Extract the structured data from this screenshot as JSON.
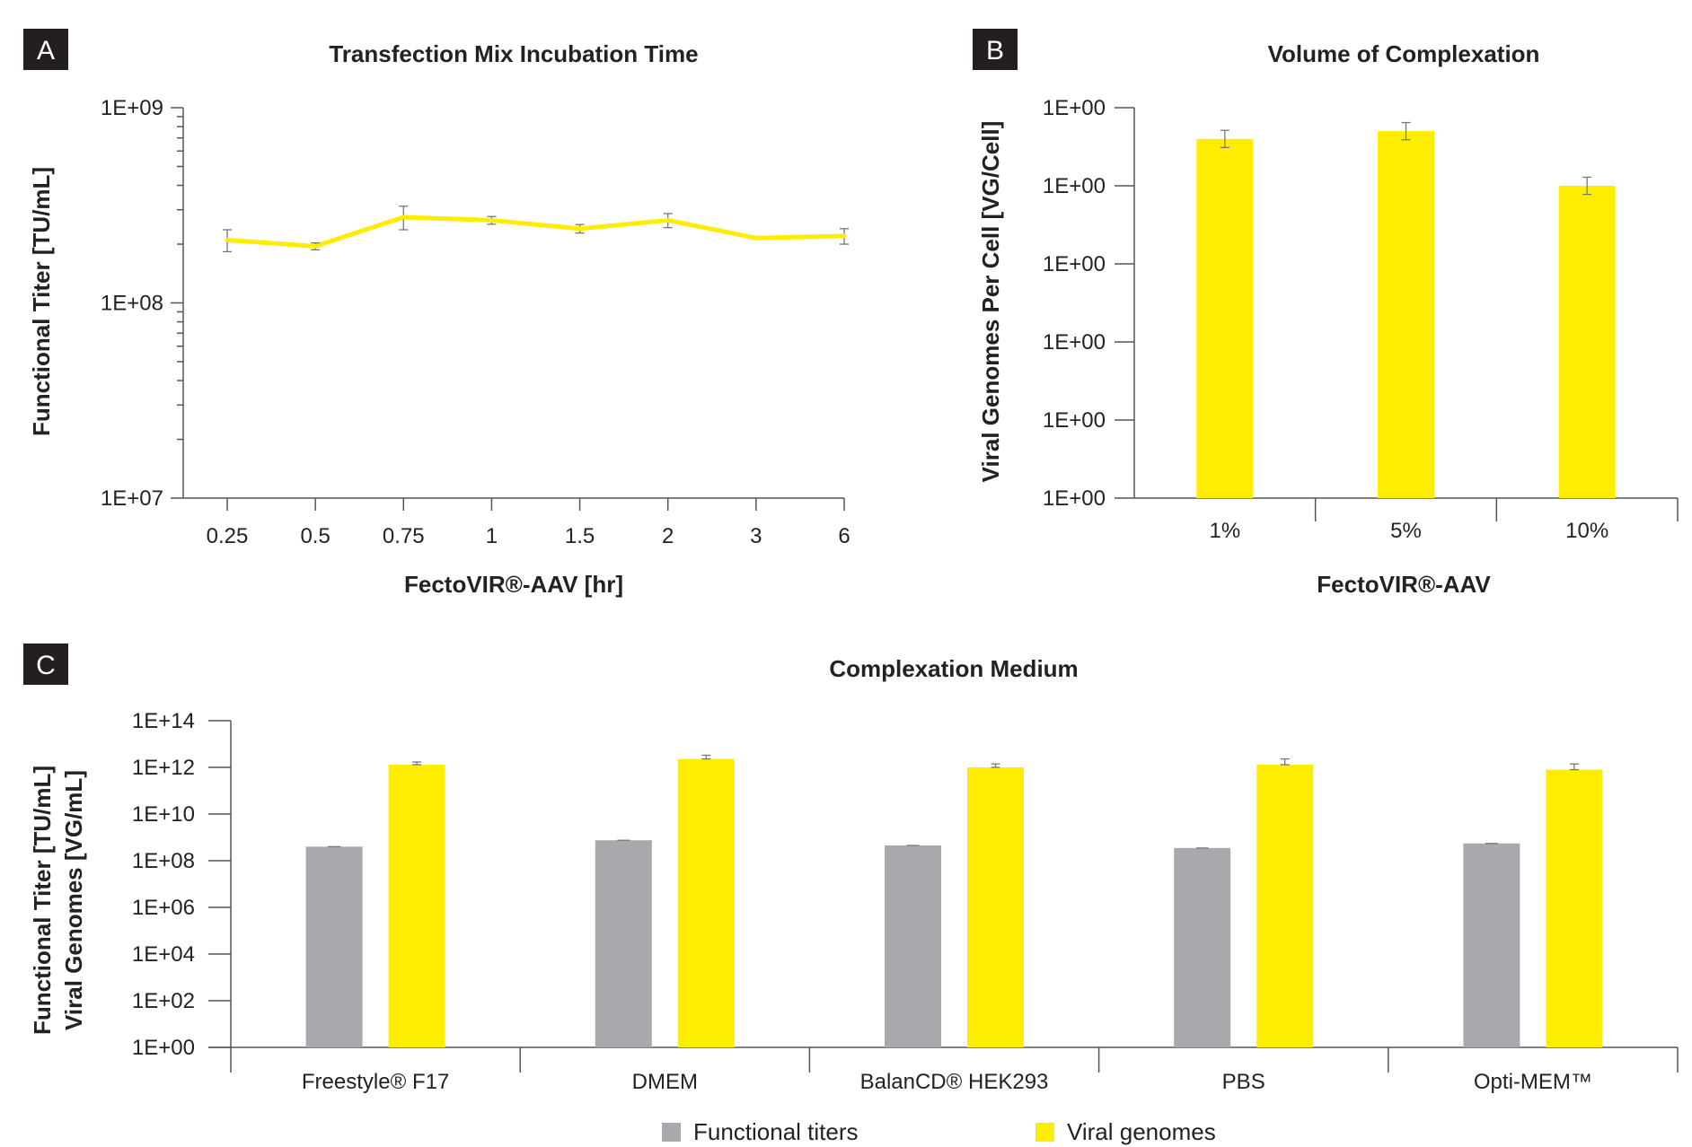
{
  "colors": {
    "yellow": "#FFED00",
    "gray": "#A7A9AC",
    "badge": "#231F20"
  },
  "chart_data": [
    {
      "panel": "A",
      "type": "line",
      "title": "Transfection Mix Incubation Time",
      "xlabel": "FectoVIR®-AAV [hr]",
      "ylabel": "Functional Titer [TU/mL]",
      "yscale": "log",
      "ylim": [
        10000000,
        1000000000
      ],
      "ytick_labels": [
        "1E+07",
        "1E+08",
        "1E+09"
      ],
      "categories": [
        "0.25",
        "0.5",
        "0.75",
        "1",
        "1.5",
        "2",
        "3",
        "6"
      ],
      "series": [
        {
          "values": [
            210000000,
            195000000,
            275000000,
            265000000,
            240000000,
            265000000,
            215000000,
            220000000
          ],
          "errors": [
            27000000,
            8000000,
            38000000,
            12000000,
            12000000,
            22000000,
            0,
            20000000
          ]
        }
      ],
      "grid": false
    },
    {
      "panel": "B",
      "type": "bar",
      "title": "Volume of Complexation",
      "xlabel": "FectoVIR®-AAV",
      "ylabel": "Viral Genomes Per Cell [VG/Cell]",
      "yscale": "log",
      "ytick_labels": [
        "1E+00",
        "1E+00",
        "1E+00",
        "1E+00",
        "1E+00",
        "1E+00"
      ],
      "categories": [
        "1%",
        "5%",
        "10%"
      ],
      "series": [
        {
          "values": [
            0.92,
            0.94,
            0.8
          ],
          "errors": [
            0.022,
            0.022,
            0.022
          ]
        }
      ],
      "grid": false
    },
    {
      "panel": "C",
      "type": "bar",
      "title": "Complexation Medium",
      "xlabel": "",
      "ylabel": "Functional Titer [TU/mL] / Viral Genomes [VG/mL]",
      "yscale": "log",
      "ylim": [
        1,
        100000000000000
      ],
      "ytick_labels": [
        "1E+00",
        "1E+02",
        "1E+04",
        "1E+06",
        "1E+08",
        "1E+10",
        "1E+12",
        "1E+14"
      ],
      "categories": [
        "Freestyle® F17",
        "DMEM",
        "BalanCD® HEK293",
        "PBS",
        "Opti-MEM™"
      ],
      "series": [
        {
          "name": "Functional titers",
          "values": [
            400000000,
            750000000,
            450000000,
            350000000,
            550000000
          ],
          "errors": [
            0,
            0,
            0,
            0,
            0
          ]
        },
        {
          "name": "Viral genomes",
          "values": [
            1300000000000,
            2300000000000,
            1000000000000,
            1300000000000,
            800000000000
          ],
          "errors": [
            400000000000,
            1000000000000,
            400000000000,
            1000000000000,
            600000000000
          ]
        }
      ],
      "legend": "bottom",
      "grid": false
    }
  ],
  "panels": {
    "a": {
      "badge": "A",
      "title": "Transfection Mix Incubation Time",
      "xlabel": "FectoVIR®-AAV [hr]",
      "ylabel": "Functional Titer [TU/mL]"
    },
    "b": {
      "badge": "B",
      "title": "Volume of Complexation",
      "xlabel": "FectoVIR®-AAV",
      "ylabel": "Viral Genomes Per Cell [VG/Cell]"
    },
    "c": {
      "badge": "C",
      "title": "Complexation Medium",
      "ylabel_line1": "Functional Titer [TU/mL]",
      "ylabel_line2": "Viral Genomes [VG/mL]"
    }
  },
  "legend": {
    "item1": "Functional titers",
    "item2": "Viral genomes"
  }
}
